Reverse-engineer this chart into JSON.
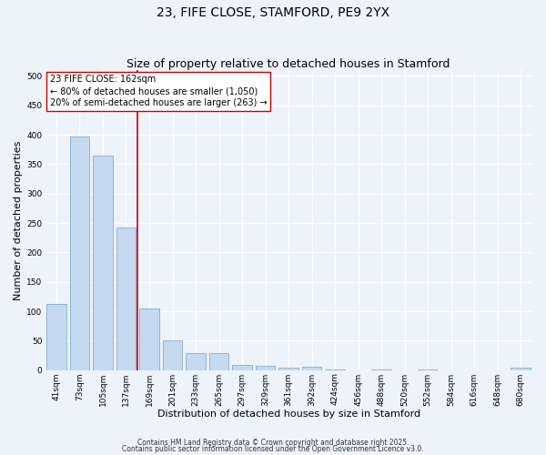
{
  "title": "23, FIFE CLOSE, STAMFORD, PE9 2YX",
  "subtitle": "Size of property relative to detached houses in Stamford",
  "xlabel": "Distribution of detached houses by size in Stamford",
  "ylabel": "Number of detached properties",
  "bins": [
    "41sqm",
    "73sqm",
    "105sqm",
    "137sqm",
    "169sqm",
    "201sqm",
    "233sqm",
    "265sqm",
    "297sqm",
    "329sqm",
    "361sqm",
    "392sqm",
    "424sqm",
    "456sqm",
    "488sqm",
    "520sqm",
    "552sqm",
    "584sqm",
    "616sqm",
    "648sqm",
    "680sqm"
  ],
  "values": [
    112,
    397,
    365,
    243,
    105,
    51,
    29,
    29,
    9,
    7,
    4,
    6,
    1,
    0,
    1,
    0,
    1,
    0,
    0,
    0,
    4
  ],
  "bar_color": "#c5d9f1",
  "bar_edge_color": "#7bafd4",
  "vline_x_index": 3.5,
  "vline_color": "#cc0000",
  "annotation_text": "23 FIFE CLOSE: 162sqm\n← 80% of detached houses are smaller (1,050)\n20% of semi-detached houses are larger (263) →",
  "annotation_box_color": "#ffffff",
  "annotation_box_edge": "#cc0000",
  "ylim": [
    0,
    510
  ],
  "yticks": [
    0,
    50,
    100,
    150,
    200,
    250,
    300,
    350,
    400,
    450,
    500
  ],
  "footer1": "Contains HM Land Registry data © Crown copyright and database right 2025.",
  "footer2": "Contains public sector information licensed under the Open Government Licence v3.0.",
  "bg_color": "#eef2f9",
  "plot_bg_color": "#eef2f9",
  "grid_color": "#ffffff",
  "title_fontsize": 10,
  "subtitle_fontsize": 9,
  "label_fontsize": 8,
  "tick_fontsize": 6.5,
  "annotation_fontsize": 7,
  "footer_fontsize": 5.5
}
